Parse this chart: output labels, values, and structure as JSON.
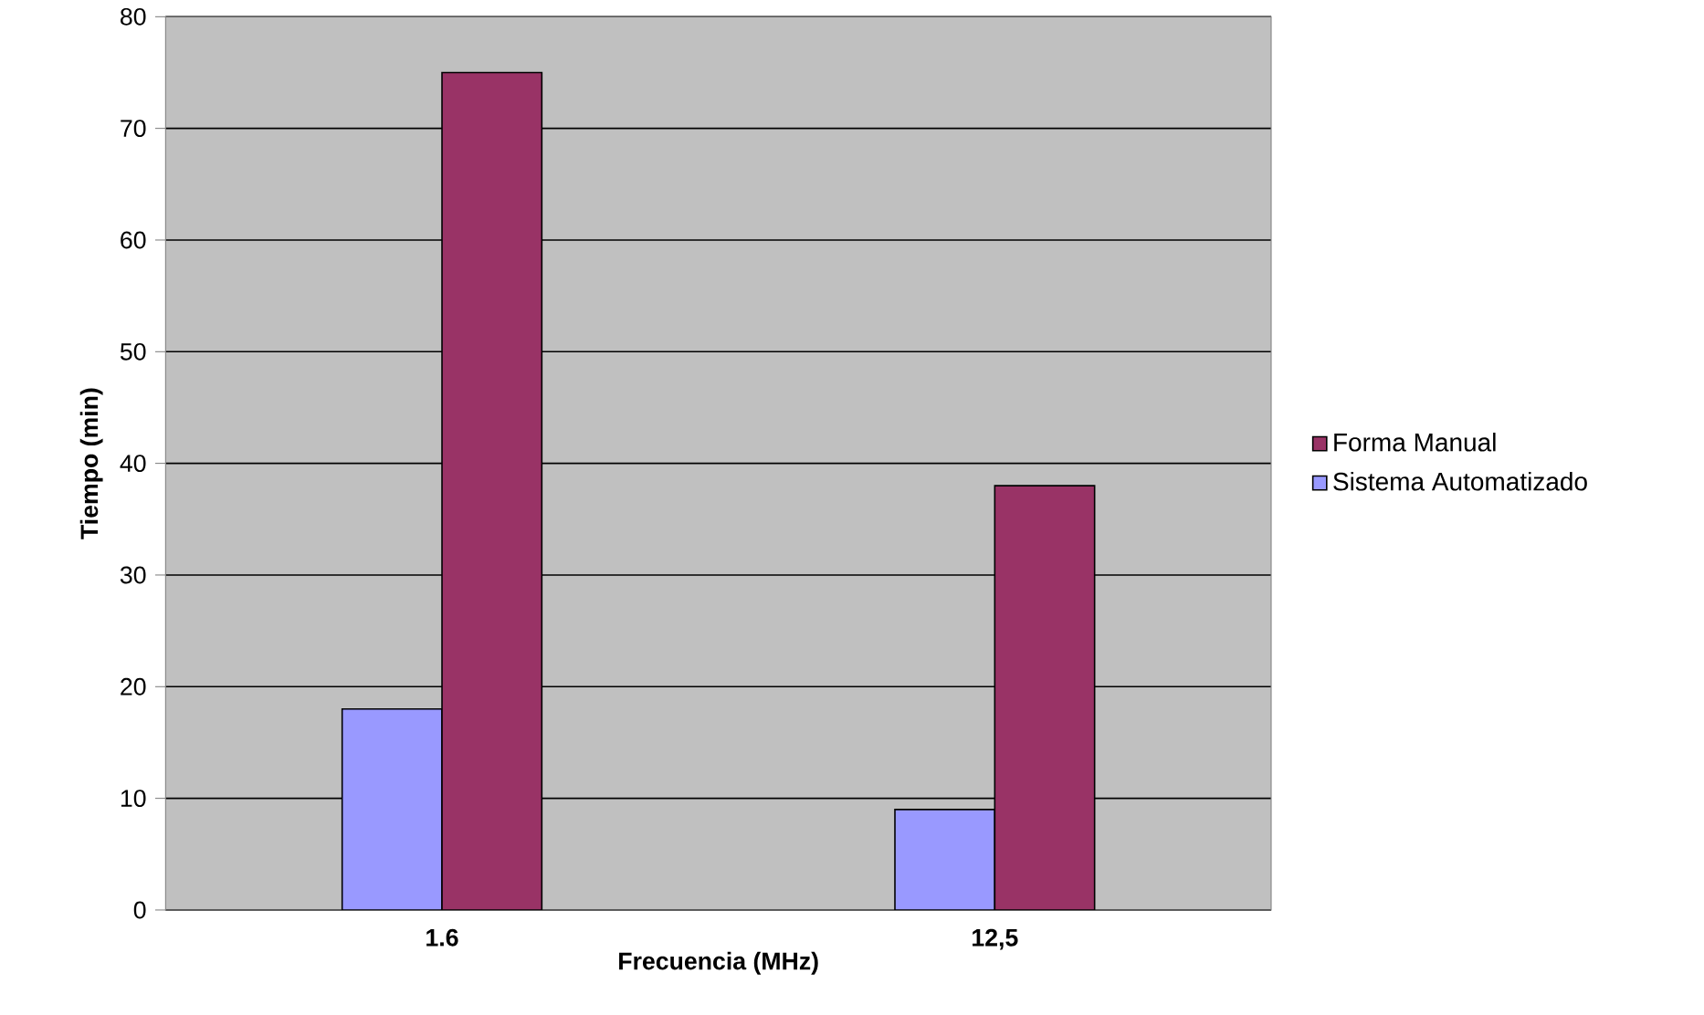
{
  "chart_data": {
    "type": "bar",
    "xlabel": "Frecuencia (MHz)",
    "ylabel": "Tiempo (min)",
    "categories": [
      "1.6",
      "12,5"
    ],
    "series": [
      {
        "name": "Sistema Automatizado",
        "color": "#9999ff",
        "values": [
          18,
          9
        ]
      },
      {
        "name": "Forma Manual",
        "color": "#993366",
        "values": [
          75,
          38
        ]
      }
    ],
    "ylim": [
      0,
      80
    ],
    "yticks": [
      0,
      10,
      20,
      30,
      40,
      50,
      60,
      70,
      80
    ],
    "grid": "y",
    "legend": "right"
  }
}
